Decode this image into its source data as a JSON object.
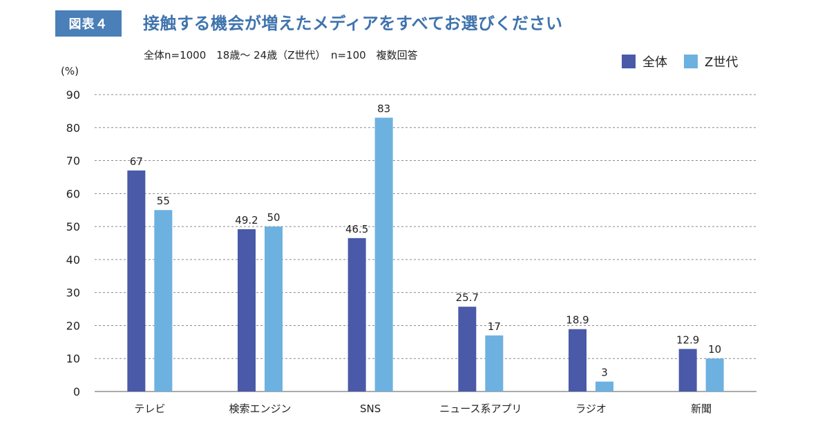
{
  "header": {
    "badge": "図表４",
    "title": "接触する機会が増えたメディアをすべてお選びください",
    "subtitle": "全体n=1000　18歳〜 24歳（Z世代）　n=100　複数回答"
  },
  "colors": {
    "all": "#4a5aa8",
    "genz": "#6db1e0",
    "grid": "#888888"
  },
  "chart_data": {
    "type": "bar",
    "unit_label": "(%)",
    "categories": [
      "テレビ",
      "検索エンジン",
      "SNS",
      "ニュース系アプリ",
      "ラジオ",
      "新聞"
    ],
    "series": [
      {
        "name": "全体",
        "values": [
          67,
          49.2,
          46.5,
          25.7,
          18.9,
          12.9
        ],
        "labels": [
          "67",
          "49.2",
          "46.5",
          "25.7",
          "18.9",
          "12.9"
        ]
      },
      {
        "name": "Z世代",
        "values": [
          55,
          50,
          83,
          17,
          3,
          10
        ],
        "labels": [
          "55",
          "50",
          "83",
          "17",
          "3",
          "10"
        ]
      }
    ],
    "ylim": [
      0,
      90
    ],
    "yticks": [
      0,
      10,
      20,
      30,
      40,
      50,
      60,
      70,
      80,
      90
    ],
    "grid": true,
    "legend_position": "top-right"
  }
}
